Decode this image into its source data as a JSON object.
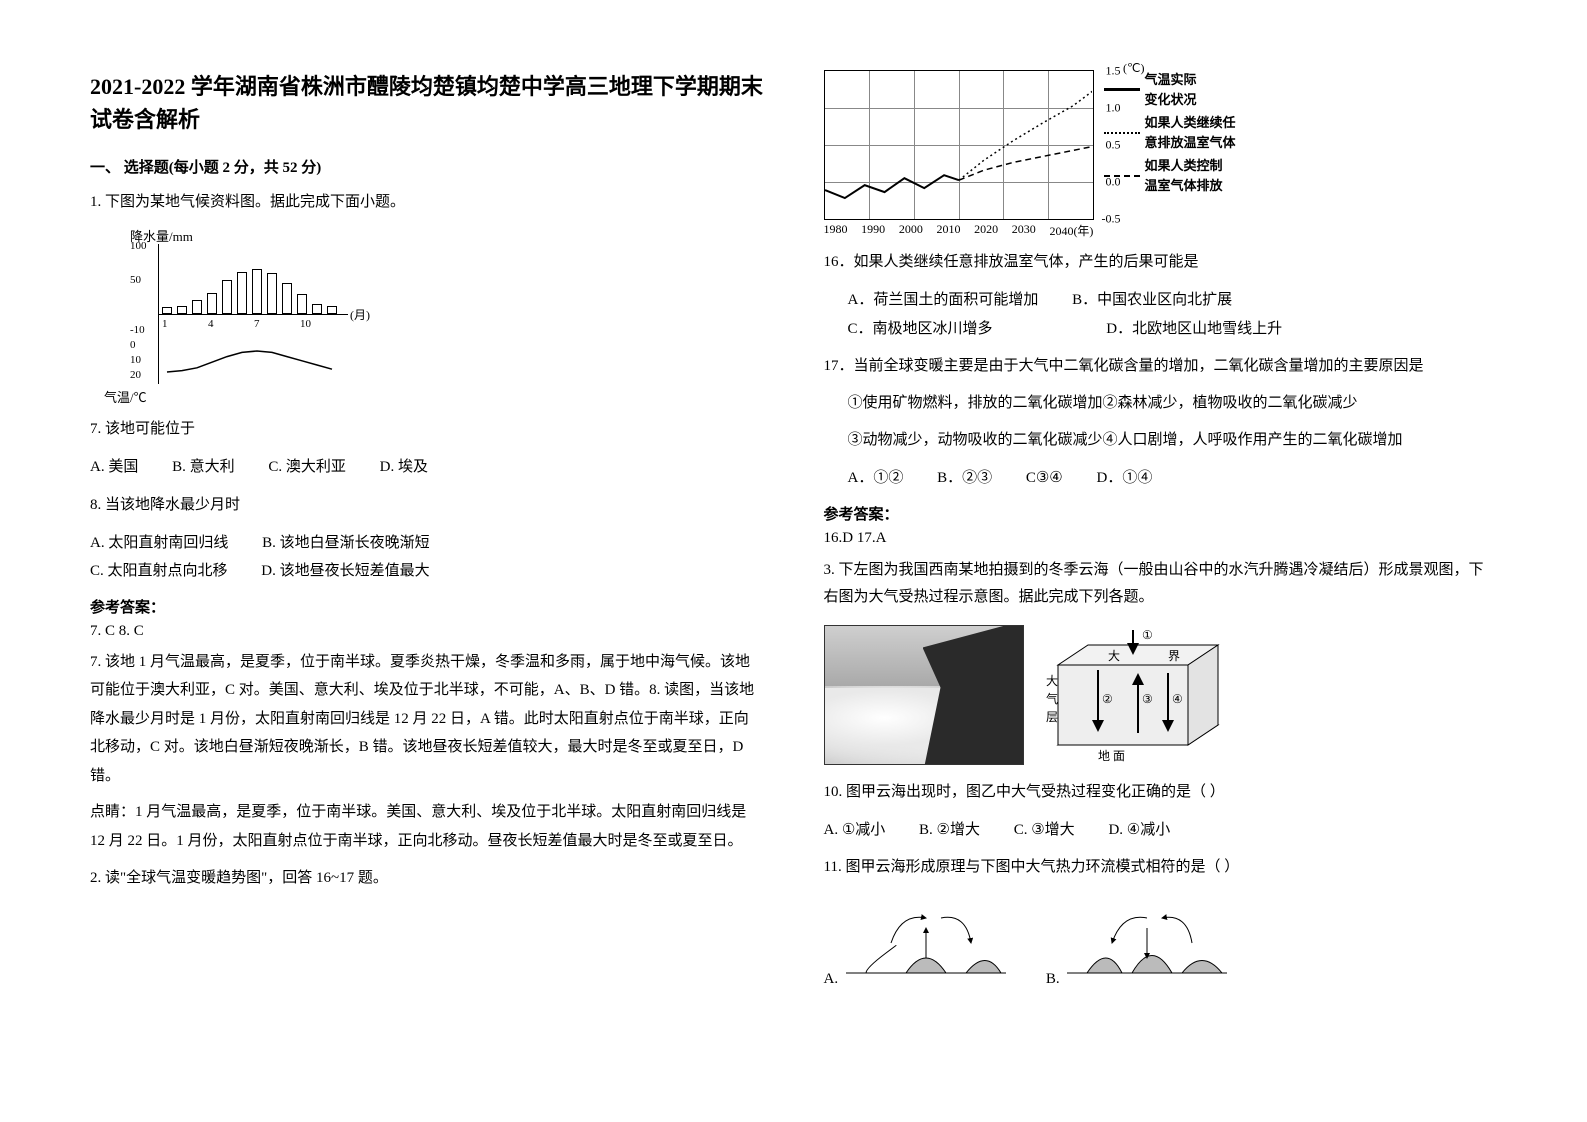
{
  "title": "2021-2022 学年湖南省株洲市醴陵均楚镇均楚中学高三地理下学期期末试卷含解析",
  "section1": "一、 选择题(每小题 2 分，共 52 分)",
  "q1": {
    "stem": "1. 下图为某地气候资料图。据此完成下面小题。",
    "chart": {
      "y_precip_label": "降水量/mm",
      "y_temp_label": "气温/℃",
      "month_unit": "(月)",
      "precip_ticks": [
        "100",
        "50"
      ],
      "temp_ticks": [
        "-10",
        "0",
        "10",
        "20"
      ],
      "x_ticks": [
        "1",
        "4",
        "7",
        "10"
      ],
      "precip_values": [
        10,
        11,
        20,
        30,
        48,
        60,
        64,
        58,
        44,
        28,
        15,
        12
      ],
      "temp_values": [
        20,
        19,
        17,
        13,
        9,
        6,
        5,
        6,
        9,
        12,
        15,
        18
      ]
    },
    "sub7": "7. 该地可能位于",
    "sub7_choices": {
      "A": "A. 美国",
      "B": "B. 意大利",
      "C": "C. 澳大利亚",
      "D": "D. 埃及"
    },
    "sub8": "8. 当该地降水最少月时",
    "sub8_choices": {
      "A": "A. 太阳直射南回归线",
      "B": "B. 该地白昼渐长夜晚渐短",
      "C": "C. 太阳直射点向北移",
      "D": "D. 该地昼夜长短差值最大"
    },
    "answer_hdr": "参考答案：",
    "answer": "7. C        8. C",
    "explain7": "7. 该地 1 月气温最高，是夏季，位于南半球。夏季炎热干燥，冬季温和多雨，属于地中海气候。该地可能位于澳大利亚，C 对。美国、意大利、埃及位于北半球，不可能，A、B、D 错。8. 读图，当该地降水最少月时是 1 月份，太阳直射南回归线是 12 月 22 日，A 错。此时太阳直射点位于南半球，正向北移动，C 对。该地白昼渐短夜晚渐长，B 错。该地昼夜长短差值较大，最大时是冬至或夏至日，D 错。",
    "tip": "点睛：1 月气温最高，是夏季，位于南半球。美国、意大利、埃及位于北半球。太阳直射南回归线是 12 月 22 日。1 月份，太阳直射点位于南半球，正向北移动。昼夜长短差值最大时是冬至或夏至日。"
  },
  "q2": {
    "stem": "2. 读\"全球气温变暖趋势图\"，回答 16~17 题。",
    "chart": {
      "y_label": "(℃)",
      "x_label_suffix": "(年)",
      "y_ticks": [
        "1.5",
        "1.0",
        "0.5",
        "0.0",
        "-0.5"
      ],
      "x_ticks": [
        "1980",
        "1990",
        "2000",
        "2010",
        "2020",
        "2030",
        "2040"
      ],
      "legend": [
        {
          "style": "solid-bold",
          "text_l1": "气温实际",
          "text_l2": "变化状况"
        },
        {
          "style": "dotted",
          "text_l1": "如果人类继续任",
          "text_l2": "意排放温室气体"
        },
        {
          "style": "dashed",
          "text_l1": "如果人类控制",
          "text_l2": "温室气体排放"
        }
      ],
      "series_actual": [
        [
          0,
          120
        ],
        [
          20,
          128
        ],
        [
          40,
          115
        ],
        [
          60,
          122
        ],
        [
          80,
          108
        ],
        [
          100,
          118
        ],
        [
          120,
          105
        ],
        [
          135,
          110
        ]
      ],
      "series_continue": [
        [
          135,
          110
        ],
        [
          160,
          90
        ],
        [
          190,
          70
        ],
        [
          220,
          52
        ],
        [
          250,
          35
        ],
        [
          270,
          20
        ]
      ],
      "series_control": [
        [
          135,
          110
        ],
        [
          160,
          100
        ],
        [
          190,
          92
        ],
        [
          220,
          86
        ],
        [
          250,
          80
        ],
        [
          270,
          76
        ]
      ]
    },
    "sub16": "16．如果人类继续任意排放温室气体，产生的后果可能是",
    "sub16_choices": {
      "A": "A．荷兰国土的面积可能增加",
      "B": "B．中国农业区向北扩展",
      "C": "C．南极地区冰川增多",
      "D": "D．北欧地区山地雪线上升"
    },
    "sub17": "17．当前全球变暖主要是由于大气中二氧化碳含量的增加，二氧化碳含量增加的主要原因是",
    "stmts": "①使用矿物燃料，排放的二氧化碳增加②森林减少，植物吸收的二氧化碳减少",
    "stmts2": "③动物减少，动物吸收的二氧化碳减少④人口剧增，人呼吸作用产生的二氧化碳增加",
    "sub17_choices": {
      "A": "A．①②",
      "B": "B．②③",
      "C": "C③④",
      "D": "D．①④"
    },
    "answer_hdr": "参考答案：",
    "answer": "16.D   17.A"
  },
  "q3": {
    "stem": "3. 下左图为我国西南某地拍摄到的冬季云海（一般由山谷中的水汽升腾遇冷凝结后）形成景观图，下右图为大气受热过程示意图。据此完成下列各题。",
    "diag_labels": {
      "top": "①",
      "layer_l": "大",
      "layer_r": "界",
      "side1": "大",
      "side2": "气",
      "side3": "层",
      "n2": "②",
      "n3": "③",
      "n4": "④",
      "ground": "地     面"
    },
    "sub10": "10.  图甲云海出现时，图乙中大气受热过程变化正确的是（       ）",
    "sub10_choices": {
      "A": "A. ①减小",
      "B": "B. ②增大",
      "C": "C. ③增大",
      "D": "D. ④减小"
    },
    "sub11": "11.  图甲云海形成原理与下图中大气热力环流模式相符的是（       ）",
    "opt_A": "A.",
    "opt_B": "B."
  }
}
